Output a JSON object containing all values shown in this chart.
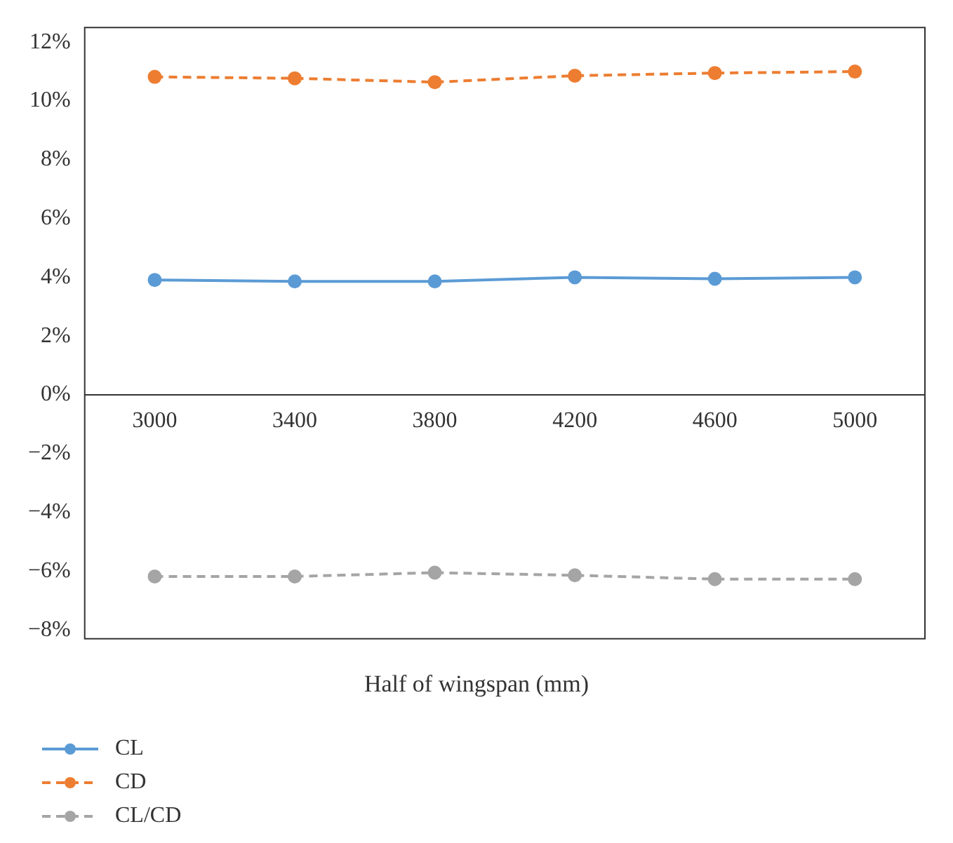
{
  "chart_data": {
    "type": "line",
    "xlabel": "Half of wingspan (mm)",
    "categories": [
      "3000",
      "3400",
      "3800",
      "4200",
      "4600",
      "5000"
    ],
    "series": [
      {
        "name": "CL",
        "color": "#5b9bd5",
        "line_style": "solid",
        "values": [
          3.91,
          3.86,
          3.86,
          4.0,
          3.95,
          4.0
        ]
      },
      {
        "name": "CD",
        "color": "#ed7d31",
        "line_style": "dashed",
        "values": [
          10.82,
          10.77,
          10.64,
          10.86,
          10.95,
          11.0
        ]
      },
      {
        "name": "CL/CD",
        "color": "#a5a5a5",
        "line_style": "dashed",
        "values": [
          -6.18,
          -6.18,
          -6.05,
          -6.14,
          -6.27,
          -6.27
        ]
      }
    ],
    "ylim": [
      -8.3,
      12.5
    ],
    "yticks": [
      {
        "value": -8,
        "label": "−8%"
      },
      {
        "value": -6,
        "label": "−6%"
      },
      {
        "value": -4,
        "label": "−4%"
      },
      {
        "value": -2,
        "label": "−2%"
      },
      {
        "value": 0,
        "label": "0%"
      },
      {
        "value": 2,
        "label": "2%"
      },
      {
        "value": 4,
        "label": "4%"
      },
      {
        "value": 6,
        "label": "6%"
      },
      {
        "value": 8,
        "label": "8%"
      },
      {
        "value": 10,
        "label": "10%"
      },
      {
        "value": 12,
        "label": "12%"
      }
    ],
    "grid": false,
    "legend": "bottom left",
    "marker": "circle"
  }
}
